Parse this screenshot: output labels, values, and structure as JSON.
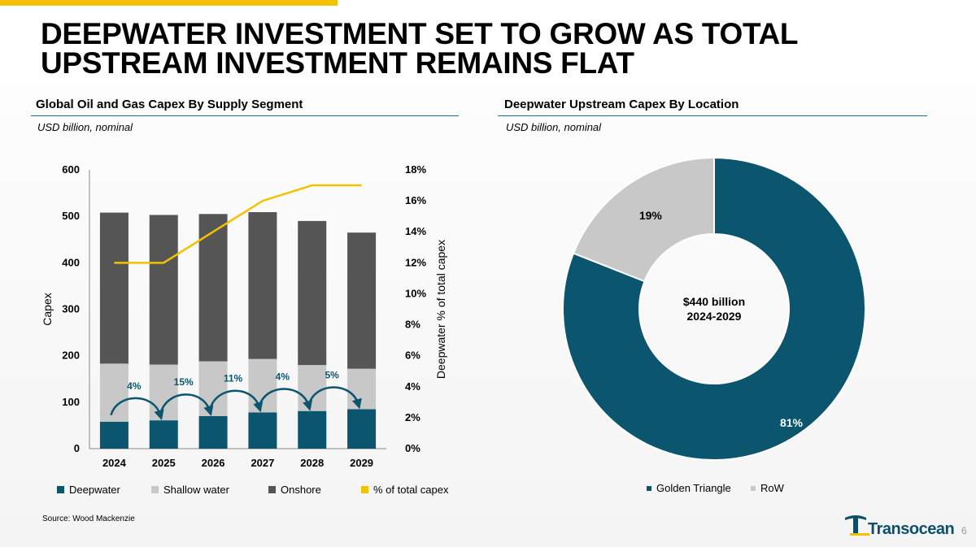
{
  "title_line1": "DEEPWATER INVESTMENT SET TO GROW AS TOTAL",
  "title_line2": "UPSTREAM INVESTMENT REMAINS FLAT",
  "colors": {
    "accent_yellow": "#f2c200",
    "deepwater": "#0b566e",
    "shallow": "#c8c8c8",
    "onshore": "#555555",
    "rule": "#1a6e8a",
    "golden_triangle": "#0b566e",
    "row": "#c8c8c8"
  },
  "left_panel": {
    "title": "Global Oil and Gas Capex By Supply Segment",
    "subtitle": "USD billion, nominal"
  },
  "right_panel": {
    "title": "Deepwater Upstream Capex By Location",
    "subtitle": "USD billion, nominal"
  },
  "chart_data": [
    {
      "type": "bar",
      "stacked": true,
      "categories": [
        "2024",
        "2025",
        "2026",
        "2027",
        "2028",
        "2029"
      ],
      "series": [
        {
          "name": "Deepwater",
          "values": [
            58,
            61,
            70,
            78,
            81,
            85
          ]
        },
        {
          "name": "Shallow water",
          "values": [
            125,
            120,
            118,
            115,
            99,
            87
          ]
        },
        {
          "name": "Onshore",
          "values": [
            325,
            322,
            317,
            316,
            310,
            293
          ]
        }
      ],
      "line_series": {
        "name": "% of total capex",
        "values": [
          12,
          12,
          14,
          16,
          17,
          17
        ]
      },
      "growth_labels": [
        "4%",
        "15%",
        "11%",
        "4%",
        "5%"
      ],
      "ylabel": "Capex",
      "y2label": "Deepwater % of total capex",
      "ylim": [
        0,
        600
      ],
      "yticks": [
        "0",
        "100",
        "200",
        "300",
        "400",
        "500",
        "600"
      ],
      "y2lim": [
        0,
        18
      ],
      "y2ticks": [
        "0%",
        "2%",
        "4%",
        "6%",
        "8%",
        "10%",
        "12%",
        "14%",
        "16%",
        "18%"
      ],
      "legend": [
        "Deepwater",
        "Shallow water",
        "Onshore",
        "% of total capex"
      ],
      "legend_position": "bottom",
      "grid": false
    },
    {
      "type": "pie",
      "donut": true,
      "slices": [
        {
          "label": "Golden Triangle",
          "value": 81,
          "display": "81%"
        },
        {
          "label": "RoW",
          "value": 19,
          "display": "19%"
        }
      ],
      "center_label_line1": "$440 billion",
      "center_label_line2": "2024-2029",
      "legend_position": "bottom"
    }
  ],
  "source": "Source: Wood Mackenzie",
  "page_number": "6",
  "logo_text": "Transocean"
}
